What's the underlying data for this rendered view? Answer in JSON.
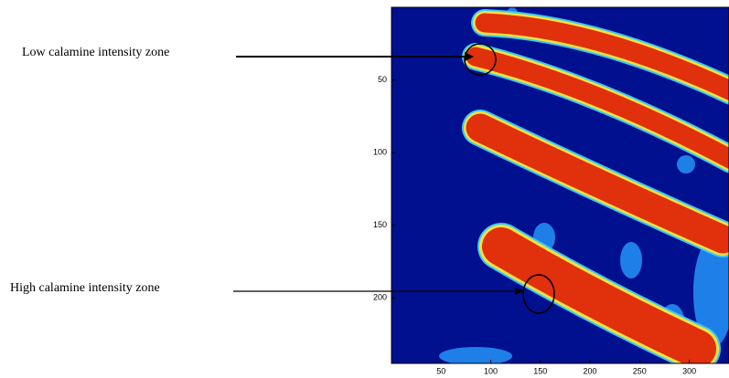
{
  "chart_data": {
    "type": "image",
    "xlim": [
      0,
      340
    ],
    "ylim": [
      0,
      245
    ],
    "y_inverted": true,
    "xticks": [
      50,
      100,
      150,
      200,
      250,
      300
    ],
    "yticks": [
      50,
      100,
      150,
      200
    ],
    "annotations": [
      "Low calamine intensity zone",
      "High calamine intensity zone"
    ]
  }
}
